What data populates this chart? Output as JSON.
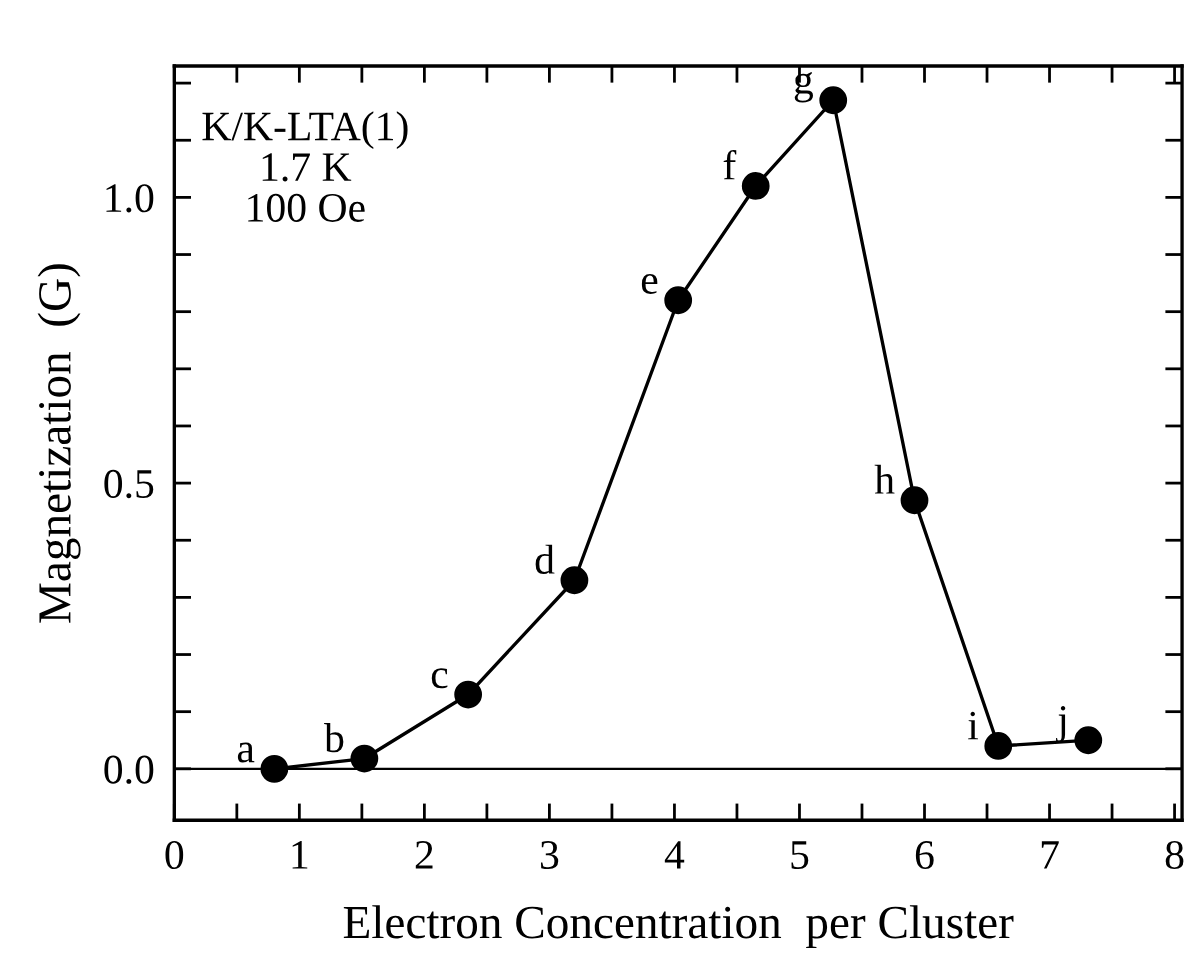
{
  "chart_data": {
    "type": "line",
    "xlabel": "Electron Concentration  per Cluster",
    "ylabel": "Magnetization  (G)",
    "x": [
      0.8,
      1.52,
      2.35,
      3.2,
      4.03,
      4.65,
      5.27,
      5.92,
      6.59,
      7.31
    ],
    "series": [
      {
        "color": "#000000",
        "values": [
          0.0,
          0.018,
          0.13,
          0.33,
          0.82,
          1.02,
          1.17,
          0.47,
          0.04,
          0.05
        ]
      }
    ],
    "marker": "circle",
    "line_style": "solid",
    "grid": false,
    "legend": false,
    "xlim": [
      0,
      8.06
    ],
    "ylim": [
      -0.09,
      1.23
    ],
    "xticks": [
      0,
      {
        "value": 0.5,
        "label": null
      },
      1,
      {
        "value": 1.5,
        "label": null
      },
      2,
      {
        "value": 2.5,
        "label": null
      },
      3,
      {
        "value": 3.5,
        "label": null
      },
      4,
      {
        "value": 4.5,
        "label": null
      },
      5,
      {
        "value": 5.5,
        "label": null
      },
      6,
      {
        "value": 6.5,
        "label": null
      },
      7,
      {
        "value": 7.5,
        "label": null
      },
      8
    ],
    "yticks": [
      {
        "value": 0,
        "label": "0.0"
      },
      {
        "value": 0.1,
        "label": null
      },
      {
        "value": 0.2,
        "label": null
      },
      {
        "value": 0.3,
        "label": null
      },
      {
        "value": 0.4,
        "label": null
      },
      {
        "value": 0.5,
        "label": "0.5"
      },
      {
        "value": 0.6,
        "label": null
      },
      {
        "value": 0.7,
        "label": null
      },
      {
        "value": 0.8,
        "label": null
      },
      {
        "value": 0.9,
        "label": null
      },
      {
        "value": 1.0,
        "label": "1.0"
      },
      {
        "value": 1.1,
        "label": null
      },
      {
        "value": 1.2,
        "label": null
      }
    ],
    "ref_lines": [
      {
        "axis": "y",
        "value": 0,
        "color": "#000000"
      }
    ],
    "annotations": [
      "K/K-LTA(1)\n1.7 K\n100 Oe",
      {
        "text": "a",
        "x": 0.8,
        "y": 0.0
      },
      {
        "text": "b",
        "x": 1.52,
        "y": 0.018
      },
      {
        "text": "c",
        "x": 2.35,
        "y": 0.13
      },
      {
        "text": "d",
        "x": 3.2,
        "y": 0.33
      },
      {
        "text": "e",
        "x": 4.03,
        "y": 0.82
      },
      {
        "text": "f",
        "x": 4.65,
        "y": 1.02
      },
      {
        "text": "g",
        "x": 5.27,
        "y": 1.17
      },
      {
        "text": "h",
        "x": 5.92,
        "y": 0.47
      },
      {
        "text": "i",
        "x": 6.59,
        "y": 0.04
      },
      {
        "text": "j",
        "x": 7.31,
        "y": 0.05
      }
    ]
  }
}
